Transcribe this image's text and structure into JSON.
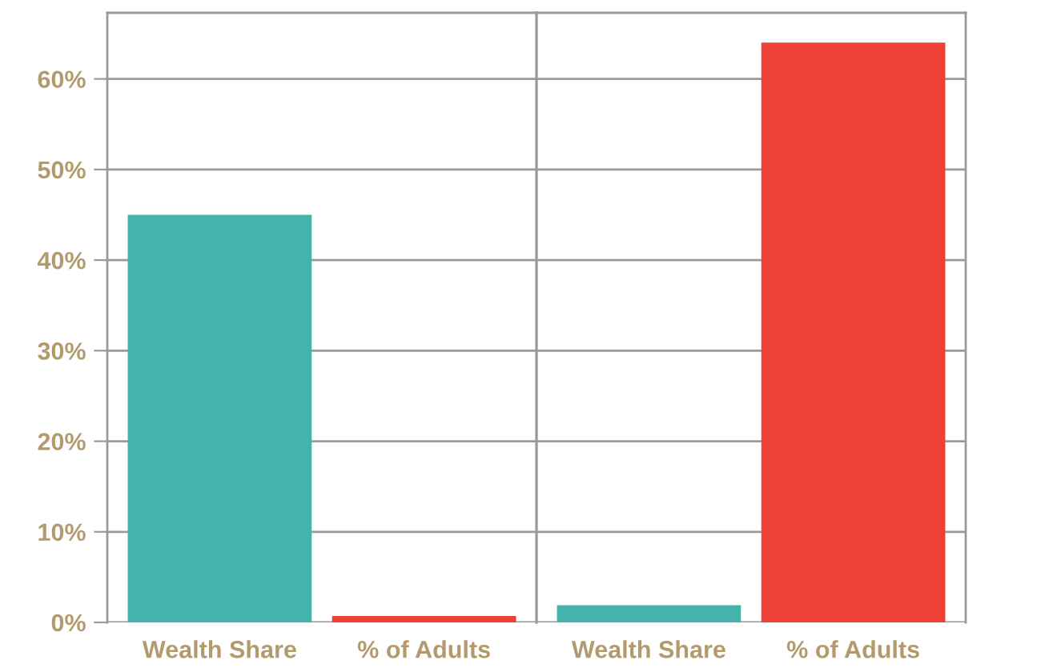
{
  "chart_data": [
    {
      "type": "bar",
      "categories": [
        "Wealth Share",
        "% of Adults"
      ],
      "values": [
        45,
        0.7
      ],
      "colors": [
        "#44b3ac",
        "#ee4136"
      ],
      "ylim": [
        0,
        67.3
      ],
      "yticks": [
        {
          "value": 0,
          "label": "0%"
        },
        {
          "value": 10,
          "label": "10%"
        },
        {
          "value": 20,
          "label": "20%"
        },
        {
          "value": 30,
          "label": "30%"
        },
        {
          "value": 40,
          "label": "40%"
        },
        {
          "value": 50,
          "label": "50%"
        },
        {
          "value": 60,
          "label": "60%"
        }
      ],
      "grid": "y"
    },
    {
      "type": "bar",
      "categories": [
        "Wealth Share",
        "% of Adults"
      ],
      "values": [
        1.9,
        64
      ],
      "colors": [
        "#44b3ac",
        "#ee4136"
      ],
      "ylim": [
        0,
        67.3
      ],
      "yticks": [
        {
          "value": 0,
          "label": null
        },
        {
          "value": 10,
          "label": null
        },
        {
          "value": 20,
          "label": null
        },
        {
          "value": 30,
          "label": null
        },
        {
          "value": 40,
          "label": null
        },
        {
          "value": 50,
          "label": null
        },
        {
          "value": 60,
          "label": null
        }
      ],
      "grid": "y",
      "tick_labels": "x"
    }
  ]
}
